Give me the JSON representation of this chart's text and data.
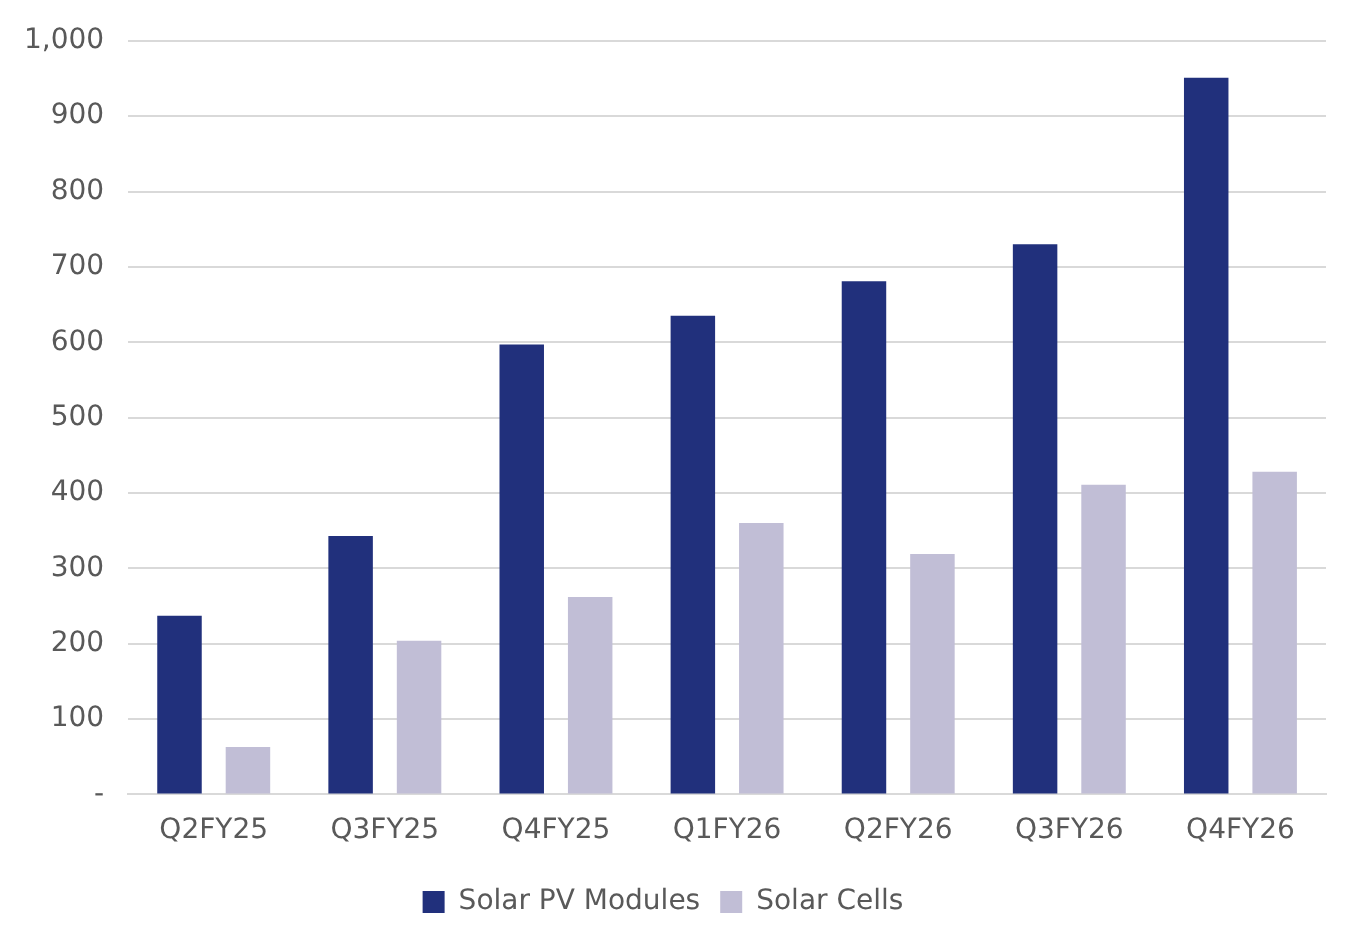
{
  "chart_data": {
    "type": "bar",
    "categories": [
      "Q2FY25",
      "Q3FY25",
      "Q4FY25",
      "Q1FY26",
      "Q2FY26",
      "Q3FY26",
      "Q4FY26"
    ],
    "series": [
      {
        "name": "Solar PV Modules",
        "color": "#21307c",
        "values": [
          237,
          343,
          597,
          635,
          681,
          730,
          951
        ]
      },
      {
        "name": "Solar Cells",
        "color": "#c1bed6",
        "values": [
          63,
          204,
          262,
          360,
          319,
          411,
          428
        ]
      }
    ],
    "ylim": [
      0,
      1000
    ],
    "yticks": [
      {
        "value": 0,
        "label": "-"
      },
      100,
      200,
      300,
      400,
      500,
      600,
      700,
      800,
      900,
      {
        "value": 1000,
        "label": "1,000"
      }
    ],
    "grid": "y",
    "legend": "bottom"
  }
}
